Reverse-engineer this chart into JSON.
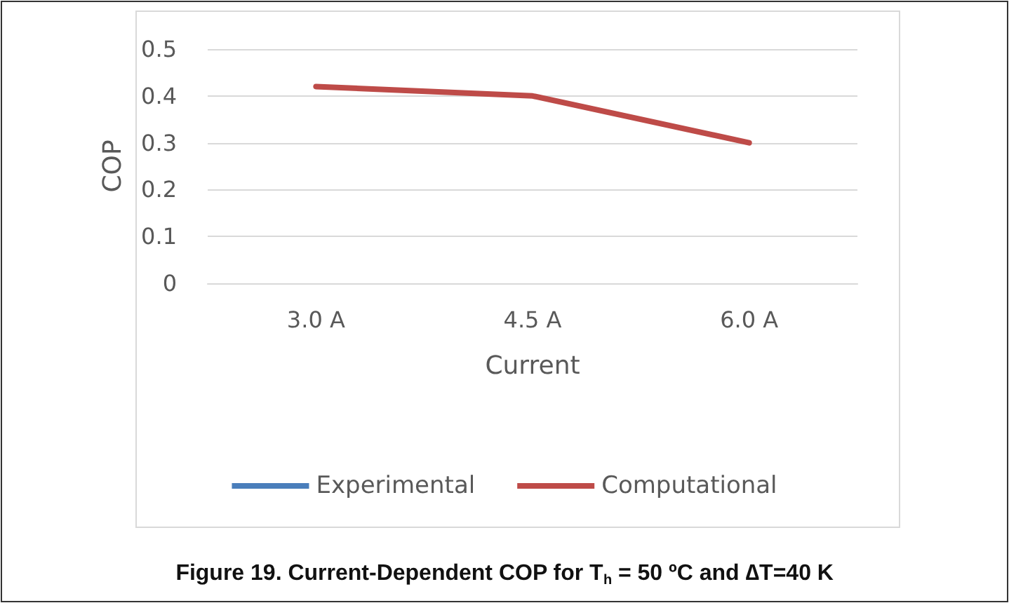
{
  "chart_data": {
    "type": "line",
    "title": "Figure 19. Current-Dependent COP for T$_{h}$ = 50 ºC and ∆T=40 K",
    "xlabel": "Current",
    "ylabel": "COP",
    "categories": [
      "3.0 A",
      "4.5 A",
      "6.0 A"
    ],
    "series": [
      {
        "name": "Experimental",
        "color": "#4a7ebb",
        "values": [
          null,
          null,
          null
        ]
      },
      {
        "name": "Computational",
        "color": "#be4b48",
        "values": [
          0.42,
          0.4,
          0.3
        ]
      }
    ],
    "ylim": [
      0,
      0.5
    ],
    "yticks": [
      0,
      0.1,
      0.2,
      0.3,
      0.4,
      0.5
    ],
    "grid": "y",
    "legend": "bottom",
    "marker": "none",
    "line_style": "solid"
  }
}
